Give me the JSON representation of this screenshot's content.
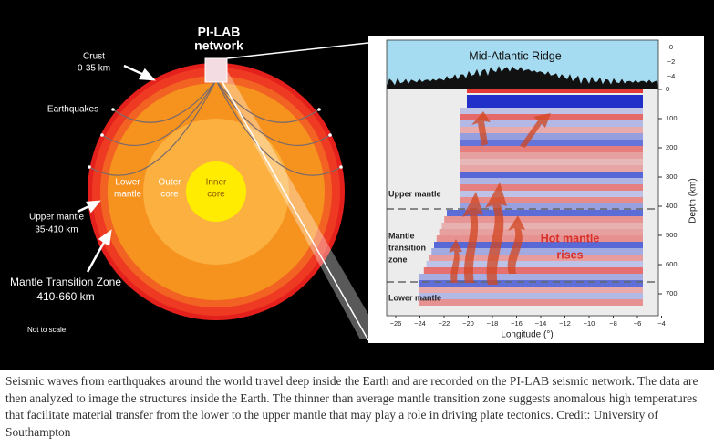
{
  "earth": {
    "network_label": [
      "PI-LAB",
      "network"
    ],
    "crust_label": [
      "Crust",
      "0-35 km"
    ],
    "earthquakes_label": "Earthquakes",
    "upper_mantle_label": [
      "Upper mantle",
      "35-410 km"
    ],
    "transition_zone_label": [
      "Mantle Transition Zone",
      "410-660 km"
    ],
    "lower_mantle_label": [
      "Lower",
      "mantle"
    ],
    "outer_core_label": [
      "Outer",
      "core"
    ],
    "inner_core_label": [
      "Inner",
      "core"
    ],
    "scale_note": "Not to scale"
  },
  "section": {
    "title": "Mid-Atlantic Ridge",
    "elevation_ticks": [
      "0",
      "−2",
      "−4"
    ],
    "depth_ticks": [
      "0",
      "100",
      "200",
      "300",
      "400",
      "500",
      "600",
      "700"
    ],
    "depth_label": "Depth (km)",
    "longitude_ticks": [
      "−26",
      "−24",
      "−22",
      "−20",
      "−18",
      "−16",
      "−14",
      "−12",
      "−10",
      "−8",
      "−6",
      "−4"
    ],
    "longitude_label": "Longitude (°)",
    "upper_mantle_label": "Upper mantle",
    "transition_zone_label": [
      "Mantle",
      "transition",
      "zone"
    ],
    "lower_mantle_label": "Lower mantle",
    "hot_mantle_label": [
      "Hot mantle",
      "rises"
    ]
  },
  "caption": "Seismic waves from earthquakes around the world travel deep inside the Earth and are recorded on the PI-LAB seismic network. The data are then analyzed to image the structures inside the Earth. The thinner than average mantle transition zone suggests anomalous high temperatures that facilitate material transfer from the lower to the upper mantle that may play a role in driving plate tectonics. Credit: University of Southampton"
}
